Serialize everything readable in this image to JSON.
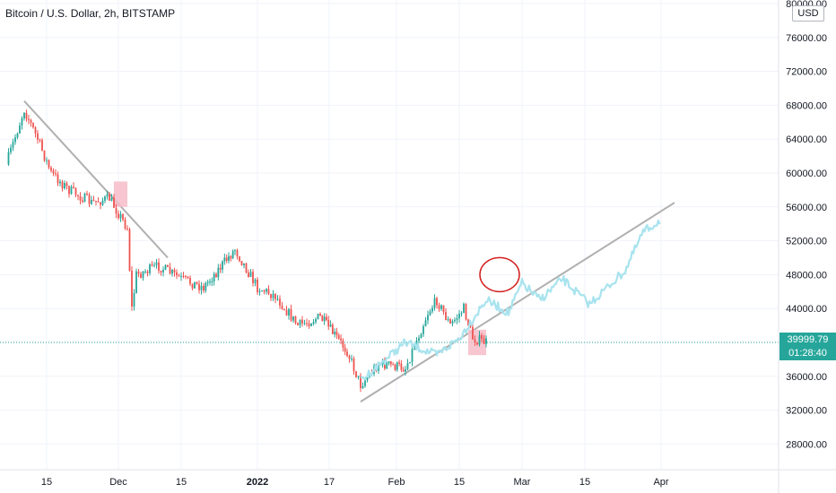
{
  "header": {
    "title": "Bitcoin / U.S. Dollar, 2h, BITSTAMP"
  },
  "price_tag": {
    "price": "39999.79",
    "countdown": "01:28:40",
    "color": "#26a69a"
  },
  "currency_badge": "USD",
  "colors": {
    "up": "#26a69a",
    "down": "#ef5350",
    "projection": "#a8e3ee",
    "trendline": "#b0b0b0",
    "highlight": "#f7bcc8",
    "circle": "#d32020",
    "current_price_line": "#26a69a"
  },
  "chart_data": {
    "type": "line",
    "title": "Bitcoin / U.S. Dollar, 2h, BITSTAMP",
    "ylim": [
      24000,
      80000
    ],
    "yticks": [
      "80000.00",
      "76000.00",
      "72000.00",
      "68000.00",
      "64000.00",
      "60000.00",
      "56000.00",
      "52000.00",
      "48000.00",
      "44000.00",
      "40000.00",
      "36000.00",
      "32000.00",
      "28000.00"
    ],
    "xticks": [
      "15",
      "Dec",
      "15",
      "2022",
      "17",
      "Feb",
      "15",
      "Mar",
      "15",
      "Apr"
    ],
    "current_price": 39999.79,
    "series": [
      {
        "kind": "price",
        "x": [
          "2021-11-06",
          "2021-11-10",
          "2021-11-13",
          "2021-11-16",
          "2021-11-20",
          "2021-11-25",
          "2021-11-29",
          "2021-12-03",
          "2021-12-04",
          "2021-12-05",
          "2021-12-10",
          "2021-12-15",
          "2021-12-20",
          "2021-12-27",
          "2022-01-01",
          "2022-01-05",
          "2022-01-10",
          "2022-01-15",
          "2022-01-21",
          "2022-01-24",
          "2022-01-28",
          "2022-02-03",
          "2022-02-08",
          "2022-02-10",
          "2022-02-13",
          "2022-02-16",
          "2022-02-18",
          "2022-02-21"
        ],
        "y": [
          61000,
          67500,
          64000,
          60000,
          58000,
          56500,
          57000,
          53500,
          44000,
          48000,
          49000,
          47500,
          46500,
          51000,
          46500,
          45500,
          42000,
          43000,
          39000,
          35000,
          37500,
          37000,
          43500,
          45000,
          42000,
          44000,
          40500,
          40000
        ]
      },
      {
        "kind": "projection",
        "x": [
          "2022-01-24",
          "2022-02-03",
          "2022-02-10",
          "2022-02-15",
          "2022-02-21",
          "2022-02-26",
          "2022-03-01",
          "2022-03-05",
          "2022-03-10",
          "2022-03-16",
          "2022-03-20",
          "2022-03-24",
          "2022-03-28",
          "2022-04-01"
        ],
        "y": [
          35500,
          40000,
          38500,
          40500,
          45000,
          43500,
          47000,
          45000,
          47500,
          44500,
          46500,
          48500,
          53000,
          54500
        ]
      }
    ],
    "trendlines": [
      {
        "from": [
          "2021-11-10",
          68500
        ],
        "to": [
          "2021-12-12",
          50000
        ]
      },
      {
        "from": [
          "2022-01-24",
          33000
        ],
        "to": [
          "2022-04-04",
          56500
        ]
      }
    ],
    "annotations": [
      {
        "type": "highlight-box",
        "x": [
          "2021-11-30",
          "2021-12-03"
        ],
        "y": [
          56000,
          59000
        ]
      },
      {
        "type": "highlight-box",
        "x": [
          "2022-02-17",
          "2022-02-21"
        ],
        "y": [
          38500,
          41500
        ]
      },
      {
        "type": "circle",
        "center": [
          "2022-02-24",
          48000
        ]
      }
    ]
  }
}
